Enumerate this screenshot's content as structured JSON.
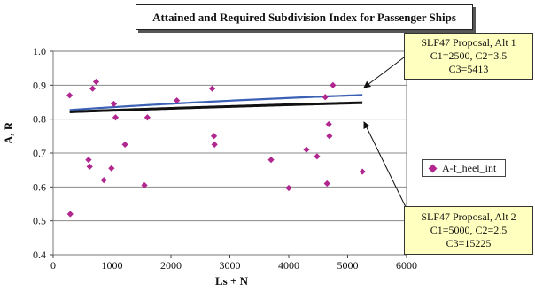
{
  "chart_data": {
    "type": "scatter",
    "title": "Attained and Required Subdivision Index for Passenger Ships",
    "xlabel": "Ls + N",
    "ylabel": "A, R",
    "xlim": [
      0,
      6000
    ],
    "ylim": [
      0.4,
      1.0
    ],
    "x_ticks": [
      "0",
      "1000",
      "2000",
      "3000",
      "4000",
      "5000",
      "6000"
    ],
    "y_ticks": [
      "0.4",
      "0.5",
      "0.6",
      "0.7",
      "0.8",
      "0.9",
      "1.0"
    ],
    "grid": "horizontal",
    "legend_position": "right",
    "series": [
      {
        "name": "A-f_heel_int",
        "kind": "scatter",
        "color": "#b0278f",
        "points": [
          [
            280,
            0.87
          ],
          [
            290,
            0.52
          ],
          [
            600,
            0.68
          ],
          [
            620,
            0.66
          ],
          [
            670,
            0.89
          ],
          [
            730,
            0.91
          ],
          [
            860,
            0.62
          ],
          [
            990,
            0.655
          ],
          [
            1030,
            0.845
          ],
          [
            1060,
            0.805
          ],
          [
            1220,
            0.725
          ],
          [
            1550,
            0.605
          ],
          [
            1600,
            0.805
          ],
          [
            2100,
            0.855
          ],
          [
            2700,
            0.89
          ],
          [
            2730,
            0.75
          ],
          [
            2740,
            0.725
          ],
          [
            3700,
            0.68
          ],
          [
            4000,
            0.597
          ],
          [
            4300,
            0.71
          ],
          [
            4480,
            0.69
          ],
          [
            4620,
            0.865
          ],
          [
            4650,
            0.61
          ],
          [
            4680,
            0.785
          ],
          [
            4690,
            0.75
          ],
          [
            4750,
            0.9
          ],
          [
            5250,
            0.645
          ]
        ]
      },
      {
        "kind": "curve",
        "color": "#3b61b5",
        "C1": 2500,
        "C2": 3.5,
        "C3": 5413,
        "x_range": [
          280,
          5250
        ]
      },
      {
        "kind": "curve",
        "color": "#111111",
        "C1": 5000,
        "C2": 2.5,
        "C3": 15225,
        "x_range": [
          280,
          5250
        ]
      }
    ],
    "annotations": [
      {
        "lines": [
          "SLF47 Proposal, Alt 1",
          "C1=2500, C2=3.5",
          "C3=5413"
        ],
        "points_to": "blue curve end"
      },
      {
        "lines": [
          "SLF47 Proposal, Alt 2",
          "C1=5000, C2=2.5",
          "C3=15225"
        ],
        "points_to": "black curve end"
      }
    ]
  }
}
